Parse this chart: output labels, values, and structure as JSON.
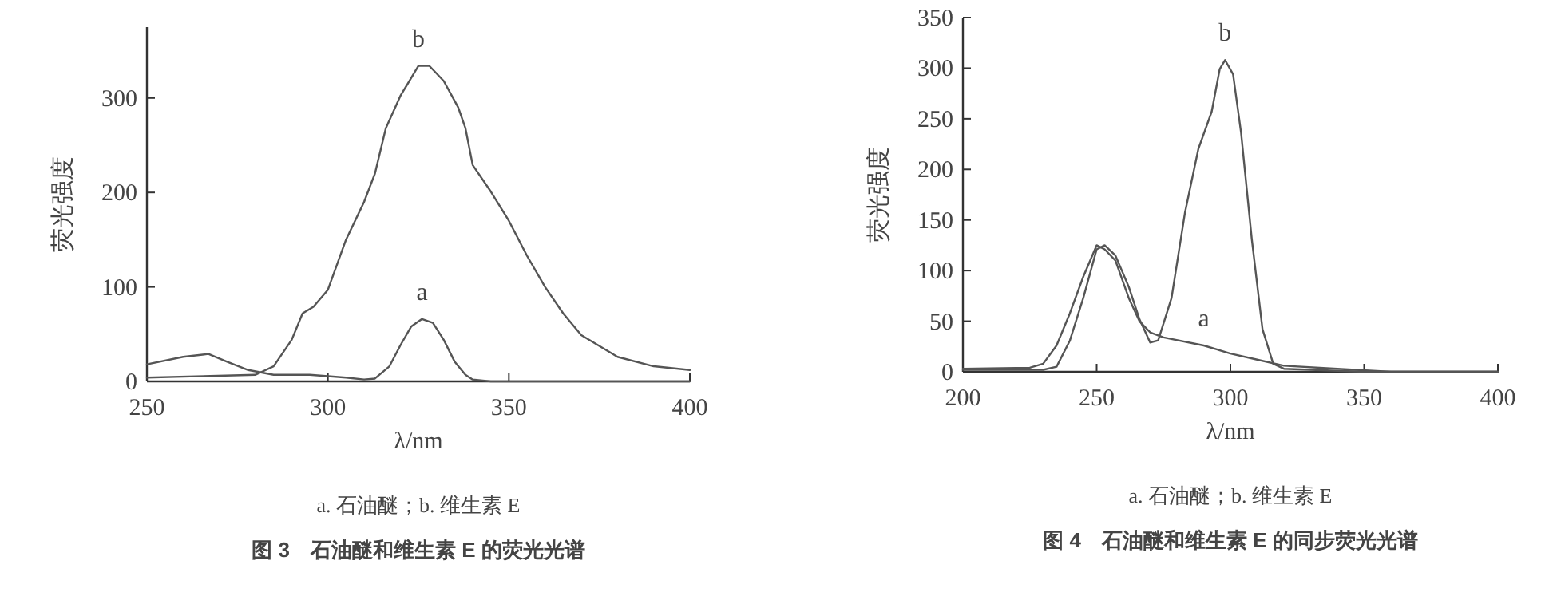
{
  "chart_data": [
    {
      "type": "line",
      "title": "图 3　石油醚和维生素 E 的荧光光谱",
      "xlabel": "λ/nm",
      "ylabel": "荧光强度",
      "annotations": [
        "a. 石油醚；b. 维生素 E",
        {
          "text": "a",
          "x": 326,
          "y": 66
        },
        {
          "text": "b",
          "x": 325,
          "y": 334
        }
      ],
      "xlim": [
        250,
        400
      ],
      "ylim": [
        0,
        375
      ],
      "xticks": [
        250,
        300,
        350,
        400
      ],
      "yticks": [
        0,
        100,
        200,
        300
      ],
      "grid": false,
      "marker": "none",
      "line_style": "solid",
      "series": [
        {
          "color": "#555555",
          "x": [
            250,
            260,
            267,
            272,
            278,
            285,
            295,
            305,
            310,
            313,
            317,
            320,
            323,
            326,
            329,
            332,
            335,
            338,
            340,
            345,
            400
          ],
          "values": [
            18,
            26,
            29,
            21,
            12,
            7,
            7,
            4,
            2,
            3,
            16,
            38,
            58,
            66,
            62,
            44,
            21,
            7,
            2,
            0,
            0
          ]
        },
        {
          "color": "#555555",
          "x": [
            250,
            280,
            285,
            290,
            293,
            296,
            300,
            305,
            310,
            313,
            316,
            320,
            325,
            328,
            332,
            336,
            338,
            340,
            345,
            350,
            355,
            360,
            365,
            370,
            380,
            390,
            400
          ],
          "values": [
            4,
            7,
            16,
            44,
            72,
            79,
            97,
            150,
            190,
            220,
            268,
            302,
            334,
            334,
            318,
            290,
            268,
            229,
            201,
            170,
            133,
            100,
            72,
            49,
            26,
            16,
            12
          ]
        }
      ]
    },
    {
      "type": "line",
      "title": "图 4　石油醚和维生素 E 的同步荧光光谱",
      "xlabel": "λ/nm",
      "ylabel": "荧光强度",
      "annotations": [
        "a. 石油醚；b. 维生素 E",
        {
          "text": "a",
          "x": 290,
          "y": 26
        },
        {
          "text": "b",
          "x": 298,
          "y": 308
        }
      ],
      "xlim": [
        200,
        400
      ],
      "ylim": [
        0,
        350
      ],
      "xticks": [
        200,
        250,
        300,
        350,
        400
      ],
      "yticks": [
        0,
        50,
        100,
        150,
        200,
        250,
        300,
        350
      ],
      "grid": false,
      "marker": "none",
      "line_style": "solid",
      "series": [
        {
          "color": "#555555",
          "x": [
            200,
            225,
            230,
            235,
            240,
            245,
            250,
            253,
            257,
            262,
            266,
            270,
            275,
            290,
            300,
            310,
            320,
            340,
            360,
            400
          ],
          "values": [
            3,
            4,
            8,
            26,
            58,
            94,
            125,
            121,
            110,
            73,
            50,
            39,
            34,
            26,
            18,
            12,
            6,
            3,
            0,
            0
          ]
        },
        {
          "color": "#555555",
          "x": [
            200,
            230,
            235,
            240,
            245,
            250,
            253,
            257,
            262,
            266,
            270,
            273,
            278,
            283,
            288,
            293,
            296,
            298,
            301,
            304,
            308,
            312,
            316,
            320,
            350,
            400
          ],
          "values": [
            2,
            2,
            5,
            31,
            73,
            121,
            125,
            115,
            84,
            52,
            29,
            31,
            73,
            157,
            220,
            257,
            299,
            308,
            294,
            236,
            131,
            42,
            8,
            3,
            0,
            0
          ]
        }
      ]
    }
  ]
}
